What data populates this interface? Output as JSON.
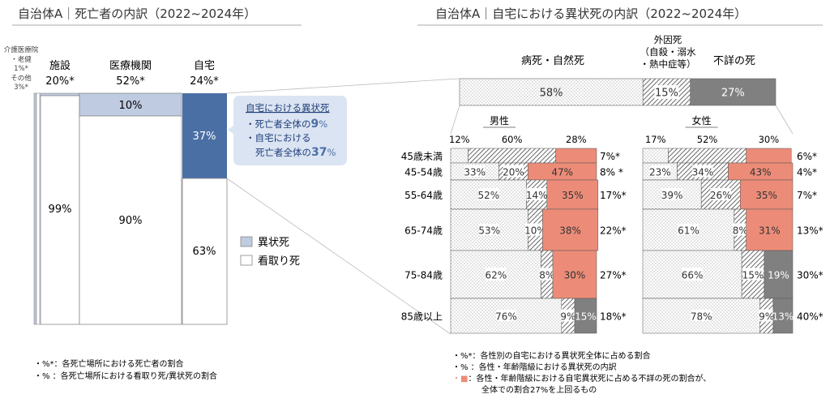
{
  "left_title": "自治体A｜死亡者の内訳（2022~2024年）",
  "right_title": "自治体A｜自宅における異状死の内訳（2022~2024年）",
  "colors": {
    "ijo": "#bfcbe0",
    "mitori": "#ffffff",
    "bar_dark": "#4a6fa5",
    "grey": "#808080",
    "salmon": "#ec8c78",
    "callout_bg": "#dbe4f2",
    "callout_text": "#1f3e7a",
    "highlight": "#4a6fa5"
  },
  "chart_data": [
    {
      "type": "bar",
      "title": "自治体A｜死亡者の内訳（2022~2024年）",
      "categories": [
        {
          "name": "介護医療院・老健",
          "share": "1%*"
        },
        {
          "name": "その他",
          "share": "3%*"
        },
        {
          "name": "施設",
          "share": "20%*"
        },
        {
          "name": "医療機関",
          "share": "52%*"
        },
        {
          "name": "自宅",
          "share": "24%*"
        }
      ],
      "share_values": [
        1,
        3,
        20,
        52,
        24
      ],
      "series": [
        {
          "name": "異状死",
          "values": [
            null,
            null,
            1,
            10,
            37
          ]
        },
        {
          "name": "看取り死",
          "values": [
            null,
            null,
            99,
            90,
            63
          ]
        }
      ],
      "small_labels": [
        "介護医療院",
        "・老健",
        "1%*",
        "その他",
        "3%*"
      ],
      "legend": [
        {
          "label": "異状死",
          "color": "#bfcbe0"
        },
        {
          "label": "看取り死",
          "color": "#ffffff"
        }
      ],
      "callout": {
        "title": "自宅における異状死",
        "line1_a": "・死亡者全体の",
        "line1_b": "9",
        "line1_c": "%",
        "line2": "・自宅における",
        "line3_a": "死亡者全体の",
        "line3_b": "37",
        "line3_c": "%"
      },
      "notes": [
        "・%*：各死亡場所における死亡者の割合",
        "・% ：各死亡場所における看取り死/異状死の割合"
      ]
    },
    {
      "type": "bar",
      "title": "自治体A｜自宅における異状死の内訳（2022~2024年）",
      "causes": [
        "病死・自然死",
        "外因死\n（自殺・溺水\n・熱中症等）",
        "不詳の死"
      ],
      "cause_label_lines": [
        "外因死",
        "（自殺・溺水",
        "・熱中症等）"
      ],
      "overall": [
        58,
        15,
        27
      ],
      "overall_labels": [
        "58%",
        "15%",
        "27%"
      ],
      "male": {
        "label": "男性",
        "header_values": [
          "12%",
          "60%",
          "28%"
        ],
        "age_groups": [
          "45歳未満",
          "45-54歳",
          "55-64歳",
          "65-74歳",
          "75-84歳",
          "85歳以上"
        ],
        "share": [
          7,
          8,
          17,
          22,
          27,
          18
        ],
        "share_labels": [
          "7%*",
          "8% *",
          "17%*",
          "22%*",
          "27%*",
          "18%*"
        ],
        "values": [
          [
            12,
            60,
            28
          ],
          [
            33,
            20,
            47
          ],
          [
            52,
            14,
            35
          ],
          [
            53,
            10,
            38
          ],
          [
            62,
            8,
            30
          ],
          [
            76,
            9,
            15
          ]
        ],
        "value_labels": [
          [
            "",
            "",
            ""
          ],
          [
            "33%",
            "20%",
            "47%"
          ],
          [
            "52%",
            "14%",
            "35%"
          ],
          [
            "53%",
            "10%",
            "38%"
          ],
          [
            "62%",
            "8%",
            "30%"
          ],
          [
            "76%",
            "9%",
            "15%"
          ]
        ],
        "above_overall": [
          true,
          true,
          true,
          true,
          true,
          false
        ]
      },
      "female": {
        "label": "女性",
        "header_values": [
          "17%",
          "52%",
          "30%"
        ],
        "share": [
          6,
          4,
          7,
          13,
          30,
          40
        ],
        "share_labels": [
          "6%*",
          "4%*",
          "7%*",
          "13%*",
          "30%*",
          "40%*"
        ],
        "values": [
          [
            17,
            52,
            30
          ],
          [
            23,
            34,
            43
          ],
          [
            39,
            26,
            35
          ],
          [
            61,
            8,
            31
          ],
          [
            66,
            15,
            19
          ],
          [
            78,
            9,
            13
          ]
        ],
        "value_labels": [
          [
            "",
            "",
            ""
          ],
          [
            "23%",
            "34%",
            "43%"
          ],
          [
            "39%",
            "26%",
            "35%"
          ],
          [
            "61%",
            "8%",
            "31%"
          ],
          [
            "66%",
            "15%",
            "19%"
          ],
          [
            "78%",
            "9%",
            "13%"
          ]
        ],
        "above_overall": [
          true,
          true,
          true,
          true,
          false,
          false
        ]
      },
      "notes": [
        {
          "marker": "",
          "text": "・%*：各性別の自宅における異状死全体に占める割合"
        },
        {
          "marker": "",
          "text": "・% ：各性・年齢階級における異状死の内訳"
        },
        {
          "marker": "■",
          "text": "：各性・年齢階級における自宅異状死に占める不詳の死の割合が、"
        },
        {
          "marker": "",
          "text": "全体での割合27%を上回るもの"
        }
      ]
    }
  ]
}
